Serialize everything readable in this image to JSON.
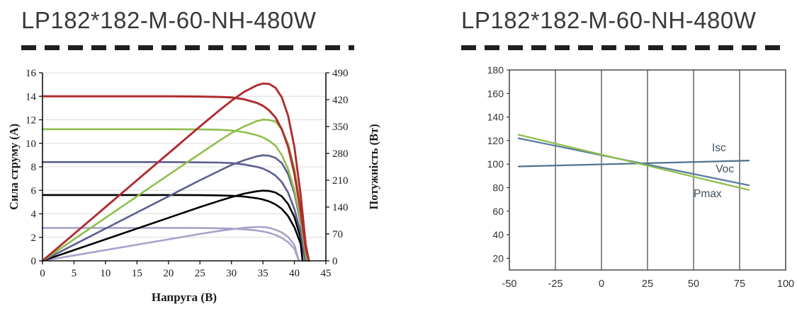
{
  "colors": {
    "title": "#39393b",
    "dashed_rule": "#1f1f1f",
    "axis": "#111111",
    "grid_light": "#dcdcdc",
    "grid_dark": "#2e2e2e",
    "series_red": "#b02c30",
    "series_green": "#8fbf4d",
    "series_purple": "#5c5d91",
    "series_black": "#000000",
    "series_lavender": "#a9a2c9",
    "series_steel_blue": "#50748f"
  },
  "chart_data": [
    {
      "type": "line",
      "title": "LP182*182-M-60-NH-480W",
      "xlabel": "Напруга (В)",
      "ylabel_left": "Сила струму (А)",
      "ylabel_right": "Потужність (Вт)",
      "xlim": [
        0,
        45
      ],
      "ylim_left": [
        0,
        16
      ],
      "ylim_right": [
        0,
        490
      ],
      "x_ticks": [
        0,
        5,
        10,
        15,
        20,
        25,
        30,
        35,
        40,
        45
      ],
      "y_left_ticks": [
        0,
        2,
        4,
        6,
        8,
        10,
        12,
        14,
        16
      ],
      "y_right_ticks": [
        0,
        70,
        140,
        210,
        280,
        350,
        420,
        490
      ],
      "grid": "horizontal-light",
      "legend": "none",
      "series": [
        {
          "id": "current-lavender",
          "axis": "left",
          "color": "#a9a2c9",
          "width": 2.6,
          "points": [
            [
              0,
              2.8
            ],
            [
              10,
              2.8
            ],
            [
              20,
              2.8
            ],
            [
              25,
              2.79
            ],
            [
              28,
              2.77
            ],
            [
              30,
              2.74
            ],
            [
              32,
              2.68
            ],
            [
              34,
              2.58
            ],
            [
              35,
              2.5
            ],
            [
              36,
              2.38
            ],
            [
              37,
              2.2
            ],
            [
              38,
              1.95
            ],
            [
              39,
              1.58
            ],
            [
              40,
              1.02
            ],
            [
              40.7,
              0
            ]
          ]
        },
        {
          "id": "power-lavender",
          "axis": "right",
          "color": "#a9a2c9",
          "width": 2.6,
          "points": [
            [
              0,
              0
            ],
            [
              10,
              28
            ],
            [
              20,
              56
            ],
            [
              25,
              70
            ],
            [
              28,
              78
            ],
            [
              30,
              82
            ],
            [
              32,
              86
            ],
            [
              34,
              88
            ],
            [
              35,
              88
            ],
            [
              36,
              86
            ],
            [
              37,
              81
            ],
            [
              38,
              74
            ],
            [
              39,
              62
            ],
            [
              40,
              41
            ],
            [
              40.7,
              0
            ]
          ]
        },
        {
          "id": "current-black",
          "axis": "left",
          "color": "#000000",
          "width": 2.6,
          "points": [
            [
              0,
              5.6
            ],
            [
              10,
              5.6
            ],
            [
              20,
              5.6
            ],
            [
              25,
              5.59
            ],
            [
              28,
              5.57
            ],
            [
              30,
              5.54
            ],
            [
              32,
              5.47
            ],
            [
              34,
              5.33
            ],
            [
              35,
              5.22
            ],
            [
              36,
              5.05
            ],
            [
              37,
              4.8
            ],
            [
              38,
              4.42
            ],
            [
              39,
              3.8
            ],
            [
              40,
              2.85
            ],
            [
              41,
              1.45
            ],
            [
              41.3,
              0
            ]
          ]
        },
        {
          "id": "power-black",
          "axis": "right",
          "color": "#000000",
          "width": 2.6,
          "points": [
            [
              0,
              0
            ],
            [
              10,
              56
            ],
            [
              20,
              112
            ],
            [
              25,
              140
            ],
            [
              28,
              156
            ],
            [
              30,
              166
            ],
            [
              32,
              175
            ],
            [
              34,
              181
            ],
            [
              35,
              183
            ],
            [
              36,
              182
            ],
            [
              37,
              178
            ],
            [
              38,
              168
            ],
            [
              39,
              148
            ],
            [
              40,
              114
            ],
            [
              41,
              59
            ],
            [
              41.3,
              0
            ]
          ]
        },
        {
          "id": "current-purple",
          "axis": "left",
          "color": "#5c5d91",
          "width": 2.6,
          "points": [
            [
              0,
              8.4
            ],
            [
              10,
              8.4
            ],
            [
              20,
              8.4
            ],
            [
              25,
              8.38
            ],
            [
              28,
              8.36
            ],
            [
              30,
              8.32
            ],
            [
              32,
              8.2
            ],
            [
              34,
              8.0
            ],
            [
              35,
              7.85
            ],
            [
              36,
              7.6
            ],
            [
              37,
              7.25
            ],
            [
              38,
              6.7
            ],
            [
              39,
              5.8
            ],
            [
              40,
              4.4
            ],
            [
              41,
              2.4
            ],
            [
              41.7,
              0
            ]
          ]
        },
        {
          "id": "power-purple",
          "axis": "right",
          "color": "#5c5d91",
          "width": 2.6,
          "points": [
            [
              0,
              0
            ],
            [
              10,
              84
            ],
            [
              20,
              168
            ],
            [
              25,
              210
            ],
            [
              28,
              234
            ],
            [
              30,
              250
            ],
            [
              32,
              262
            ],
            [
              34,
              272
            ],
            [
              35,
              275
            ],
            [
              36,
              274
            ],
            [
              37,
              268
            ],
            [
              38,
              255
            ],
            [
              39,
              226
            ],
            [
              40,
              176
            ],
            [
              41,
              98
            ],
            [
              41.7,
              0
            ]
          ]
        },
        {
          "id": "current-green",
          "axis": "left",
          "color": "#8fbf4d",
          "width": 2.6,
          "points": [
            [
              0,
              11.2
            ],
            [
              10,
              11.2
            ],
            [
              20,
              11.2
            ],
            [
              25,
              11.18
            ],
            [
              28,
              11.15
            ],
            [
              30,
              11.1
            ],
            [
              32,
              10.95
            ],
            [
              34,
              10.7
            ],
            [
              35,
              10.5
            ],
            [
              36,
              10.2
            ],
            [
              37,
              9.8
            ],
            [
              38,
              9.0
            ],
            [
              39,
              7.8
            ],
            [
              40,
              6.0
            ],
            [
              41,
              3.4
            ],
            [
              41.6,
              1.2
            ],
            [
              42,
              0
            ]
          ]
        },
        {
          "id": "power-green",
          "axis": "right",
          "color": "#8fbf4d",
          "width": 2.6,
          "points": [
            [
              0,
              0
            ],
            [
              10,
              112
            ],
            [
              20,
              224
            ],
            [
              25,
              279
            ],
            [
              28,
              312
            ],
            [
              30,
              333
            ],
            [
              32,
              350
            ],
            [
              34,
              364
            ],
            [
              35,
              368
            ],
            [
              36,
              367
            ],
            [
              37,
              363
            ],
            [
              38,
              342
            ],
            [
              39,
              304
            ],
            [
              40,
              240
            ],
            [
              41,
              139
            ],
            [
              41.6,
              50
            ],
            [
              42,
              0
            ]
          ]
        },
        {
          "id": "current-red",
          "axis": "left",
          "color": "#b02c30",
          "width": 3,
          "points": [
            [
              0,
              14.0
            ],
            [
              10,
              14.0
            ],
            [
              20,
              14.0
            ],
            [
              25,
              13.98
            ],
            [
              28,
              13.95
            ],
            [
              30,
              13.9
            ],
            [
              32,
              13.75
            ],
            [
              34,
              13.45
            ],
            [
              35,
              13.2
            ],
            [
              36,
              12.8
            ],
            [
              37,
              12.2
            ],
            [
              38,
              11.2
            ],
            [
              39,
              9.7
            ],
            [
              40,
              7.4
            ],
            [
              41,
              4.2
            ],
            [
              41.8,
              1.0
            ],
            [
              42.3,
              0
            ]
          ]
        },
        {
          "id": "power-red",
          "axis": "right",
          "color": "#b02c30",
          "width": 2.9,
          "points": [
            [
              0,
              0
            ],
            [
              10,
              140
            ],
            [
              20,
              280
            ],
            [
              25,
              350
            ],
            [
              28,
              391
            ],
            [
              30,
              417
            ],
            [
              32,
              440
            ],
            [
              34,
              457
            ],
            [
              35,
              462
            ],
            [
              36,
              461
            ],
            [
              37,
              451
            ],
            [
              38,
              426
            ],
            [
              39,
              378
            ],
            [
              40,
              296
            ],
            [
              41,
              172
            ],
            [
              41.8,
              42
            ],
            [
              42.3,
              0
            ]
          ]
        }
      ]
    },
    {
      "type": "line",
      "title": "LP182*182-M-60-NH-480W",
      "xlabel": "",
      "ylabel": "",
      "xlim": [
        -50,
        100
      ],
      "ylim": [
        10,
        180
      ],
      "x_ticks": [
        -50,
        -25,
        0,
        25,
        50,
        75,
        100
      ],
      "y_ticks": [
        20,
        40,
        60,
        80,
        100,
        120,
        140,
        160,
        180
      ],
      "grid": "vertical-dark",
      "legend": "inline-labels",
      "series": [
        {
          "name": "Isc",
          "color": "#50748f",
          "points": [
            [
              -45,
              98
            ],
            [
              80,
              103
            ]
          ],
          "label": {
            "text": "Isc",
            "x": 60,
            "y": 111
          }
        },
        {
          "name": "Voc",
          "color": "#5a7d99",
          "points": [
            [
              -45,
              122
            ],
            [
              80,
              82
            ]
          ],
          "label": {
            "text": "Voc",
            "x": 62,
            "y": 93
          }
        },
        {
          "name": "Pmax",
          "color": "#8fbf4d",
          "points": [
            [
              -45,
              125
            ],
            [
              80,
              78
            ]
          ],
          "label": {
            "text": "Pmax",
            "x": 50,
            "y": 72
          }
        }
      ]
    }
  ]
}
